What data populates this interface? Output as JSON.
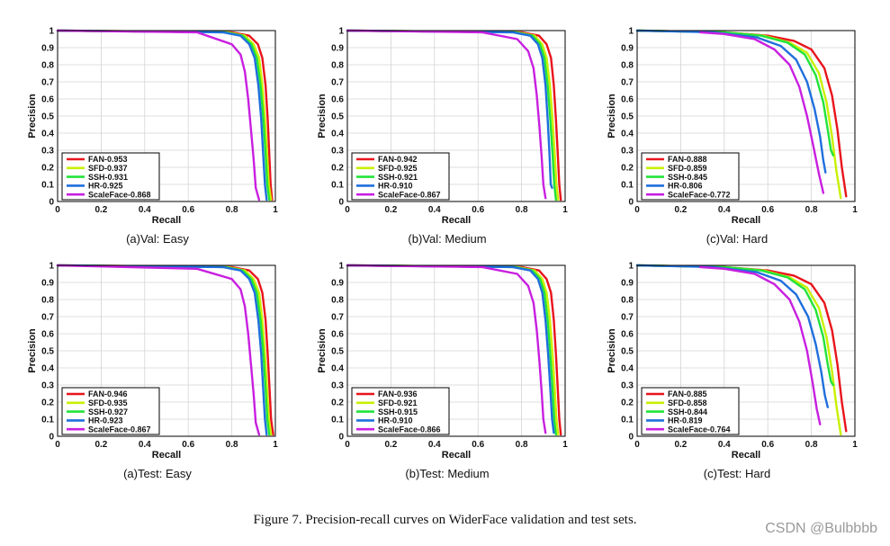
{
  "figure_caption": "Figure 7. Precision-recall curves on WiderFace validation and test sets.",
  "watermark": "CSDN @Bulbbbb",
  "colors": {
    "FAN": "#e8141c",
    "SFD": "#c8f000",
    "SSH": "#22e33a",
    "HR": "#1f6fdd",
    "ScaleFace": "#c81fe0"
  },
  "chart_data": [
    {
      "type": "line",
      "subtitle": "(a)Val: Easy",
      "xlabel": "Recall",
      "ylabel": "Precision",
      "xlim": [
        0,
        1
      ],
      "ylim": [
        0,
        1
      ],
      "grid": true,
      "legend_position": "bottom-left",
      "xticks": [
        "0",
        "0.2",
        "0.4",
        "0.6",
        "0.8",
        "1"
      ],
      "yticks": [
        "0",
        "0.1",
        "0.2",
        "0.3",
        "0.4",
        "0.5",
        "0.6",
        "0.7",
        "0.8",
        "0.9",
        "1"
      ],
      "series": [
        {
          "name": "FAN-0.953",
          "key": "FAN",
          "x": [
            0,
            0.8,
            0.88,
            0.92,
            0.94,
            0.955,
            0.965,
            0.972,
            0.978,
            0.985
          ],
          "y": [
            1,
            0.99,
            0.97,
            0.92,
            0.84,
            0.68,
            0.48,
            0.28,
            0.1,
            0.01
          ]
        },
        {
          "name": "SFD-0.937",
          "key": "SFD",
          "x": [
            0,
            0.78,
            0.86,
            0.9,
            0.925,
            0.94,
            0.952,
            0.962,
            0.97,
            0.98
          ],
          "y": [
            1,
            0.99,
            0.97,
            0.92,
            0.84,
            0.68,
            0.48,
            0.28,
            0.1,
            0.01
          ]
        },
        {
          "name": "SSH-0.931",
          "key": "SSH",
          "x": [
            0,
            0.77,
            0.85,
            0.89,
            0.915,
            0.932,
            0.945,
            0.955,
            0.963,
            0.972
          ],
          "y": [
            1,
            0.99,
            0.97,
            0.92,
            0.84,
            0.68,
            0.48,
            0.28,
            0.1,
            0.01
          ]
        },
        {
          "name": "HR-0.925",
          "key": "HR",
          "x": [
            0,
            0.76,
            0.84,
            0.88,
            0.905,
            0.922,
            0.935,
            0.944,
            0.952,
            0.96
          ],
          "y": [
            1,
            0.99,
            0.97,
            0.92,
            0.84,
            0.68,
            0.48,
            0.28,
            0.1,
            0.01
          ]
        },
        {
          "name": "ScaleFace-0.868",
          "key": "ScaleFace",
          "x": [
            0,
            0.64,
            0.8,
            0.84,
            0.86,
            0.875,
            0.888,
            0.9,
            0.91,
            0.925
          ],
          "y": [
            1,
            0.99,
            0.92,
            0.86,
            0.76,
            0.6,
            0.42,
            0.25,
            0.08,
            0.01
          ]
        }
      ]
    },
    {
      "type": "line",
      "subtitle": "(b)Val: Medium",
      "xlabel": "Recall",
      "ylabel": "Precision",
      "xlim": [
        0,
        1
      ],
      "ylim": [
        0,
        1
      ],
      "grid": true,
      "legend_position": "bottom-left",
      "xticks": [
        "0",
        "0.2",
        "0.4",
        "0.6",
        "0.8",
        "1"
      ],
      "yticks": [
        "0",
        "0.1",
        "0.2",
        "0.3",
        "0.4",
        "0.5",
        "0.6",
        "0.7",
        "0.8",
        "0.9",
        "1"
      ],
      "series": [
        {
          "name": "FAN-0.942",
          "key": "FAN",
          "x": [
            0,
            0.8,
            0.88,
            0.915,
            0.935,
            0.948,
            0.958,
            0.966,
            0.973,
            0.98
          ],
          "y": [
            1,
            0.99,
            0.97,
            0.92,
            0.84,
            0.68,
            0.48,
            0.28,
            0.1,
            0.01
          ]
        },
        {
          "name": "SFD-0.925",
          "key": "SFD",
          "x": [
            0,
            0.78,
            0.86,
            0.895,
            0.915,
            0.93,
            0.942,
            0.952,
            0.96,
            0.968
          ],
          "y": [
            1,
            0.99,
            0.97,
            0.92,
            0.84,
            0.68,
            0.48,
            0.28,
            0.1,
            0.01
          ]
        },
        {
          "name": "SSH-0.921",
          "key": "SSH",
          "x": [
            0,
            0.77,
            0.85,
            0.885,
            0.905,
            0.92,
            0.932,
            0.942,
            0.95,
            0.958
          ],
          "y": [
            1,
            0.99,
            0.97,
            0.92,
            0.84,
            0.68,
            0.48,
            0.28,
            0.1,
            0.01
          ]
        },
        {
          "name": "HR-0.910",
          "key": "HR",
          "x": [
            0,
            0.76,
            0.84,
            0.875,
            0.895,
            0.91,
            0.92,
            0.928,
            0.934,
            0.94
          ],
          "y": [
            1,
            0.99,
            0.97,
            0.92,
            0.84,
            0.68,
            0.48,
            0.28,
            0.1,
            0.08
          ]
        },
        {
          "name": "ScaleFace-0.867",
          "key": "ScaleFace",
          "x": [
            0,
            0.62,
            0.78,
            0.83,
            0.855,
            0.87,
            0.882,
            0.892,
            0.9,
            0.91
          ],
          "y": [
            1,
            0.99,
            0.95,
            0.88,
            0.78,
            0.62,
            0.44,
            0.26,
            0.1,
            0.02
          ]
        }
      ]
    },
    {
      "type": "line",
      "subtitle": "(c)Val: Hard",
      "xlabel": "Recall",
      "ylabel": "Precision",
      "xlim": [
        0,
        1
      ],
      "ylim": [
        0,
        1
      ],
      "grid": true,
      "legend_position": "bottom-left",
      "xticks": [
        "0",
        "0.2",
        "0.4",
        "0.6",
        "0.8",
        "1"
      ],
      "yticks": [
        "0",
        "0.1",
        "0.2",
        "0.3",
        "0.4",
        "0.5",
        "0.6",
        "0.7",
        "0.8",
        "0.9",
        "1"
      ],
      "series": [
        {
          "name": "FAN-0.888",
          "key": "FAN",
          "x": [
            0,
            0.4,
            0.6,
            0.72,
            0.8,
            0.86,
            0.895,
            0.92,
            0.94,
            0.96
          ],
          "y": [
            1,
            0.99,
            0.97,
            0.94,
            0.89,
            0.78,
            0.62,
            0.42,
            0.2,
            0.03
          ]
        },
        {
          "name": "SFD-0.859",
          "key": "SFD",
          "x": [
            0,
            0.4,
            0.58,
            0.7,
            0.78,
            0.835,
            0.87,
            0.895,
            0.915,
            0.935
          ],
          "y": [
            1,
            0.99,
            0.97,
            0.93,
            0.87,
            0.75,
            0.58,
            0.38,
            0.18,
            0.02
          ]
        },
        {
          "name": "SSH-0.845",
          "key": "SSH",
          "x": [
            0,
            0.4,
            0.57,
            0.69,
            0.77,
            0.82,
            0.855,
            0.875,
            0.89,
            0.9
          ],
          "y": [
            1,
            0.99,
            0.97,
            0.93,
            0.86,
            0.74,
            0.58,
            0.42,
            0.3,
            0.27
          ]
        },
        {
          "name": "HR-0.806",
          "key": "HR",
          "x": [
            0,
            0.35,
            0.55,
            0.66,
            0.73,
            0.78,
            0.815,
            0.84,
            0.855,
            0.865
          ],
          "y": [
            1,
            0.99,
            0.96,
            0.91,
            0.83,
            0.7,
            0.54,
            0.38,
            0.24,
            0.17
          ]
        },
        {
          "name": "ScaleFace-0.772",
          "key": "ScaleFace",
          "x": [
            0.29,
            0.4,
            0.54,
            0.63,
            0.7,
            0.745,
            0.78,
            0.81,
            0.835,
            0.855
          ],
          "y": [
            0.99,
            0.98,
            0.95,
            0.89,
            0.8,
            0.67,
            0.5,
            0.32,
            0.16,
            0.05
          ]
        }
      ]
    },
    {
      "type": "line",
      "subtitle": "(a)Test: Easy",
      "xlabel": "Recall",
      "ylabel": "Precision",
      "xlim": [
        0,
        1
      ],
      "ylim": [
        0,
        1
      ],
      "grid": true,
      "legend_position": "bottom-left",
      "xticks": [
        "0",
        "0.2",
        "0.4",
        "0.6",
        "0.8",
        "1"
      ],
      "yticks": [
        "0",
        "0.1",
        "0.2",
        "0.3",
        "0.4",
        "0.5",
        "0.6",
        "0.7",
        "0.8",
        "0.9",
        "1"
      ],
      "series": [
        {
          "name": "FAN-0.946",
          "key": "FAN",
          "x": [
            0,
            0.8,
            0.88,
            0.92,
            0.94,
            0.955,
            0.965,
            0.973,
            0.98,
            0.99
          ],
          "y": [
            1,
            0.99,
            0.97,
            0.92,
            0.84,
            0.68,
            0.48,
            0.28,
            0.1,
            0.01
          ]
        },
        {
          "name": "SFD-0.935",
          "key": "SFD",
          "x": [
            0,
            0.78,
            0.86,
            0.9,
            0.925,
            0.94,
            0.952,
            0.962,
            0.97,
            0.98
          ],
          "y": [
            1,
            0.99,
            0.97,
            0.92,
            0.84,
            0.68,
            0.48,
            0.28,
            0.1,
            0.01
          ]
        },
        {
          "name": "SSH-0.927",
          "key": "SSH",
          "x": [
            0,
            0.77,
            0.85,
            0.89,
            0.915,
            0.932,
            0.945,
            0.955,
            0.963,
            0.972
          ],
          "y": [
            1,
            0.99,
            0.97,
            0.92,
            0.84,
            0.68,
            0.48,
            0.28,
            0.1,
            0.01
          ]
        },
        {
          "name": "HR-0.923",
          "key": "HR",
          "x": [
            0,
            0.76,
            0.84,
            0.88,
            0.905,
            0.922,
            0.935,
            0.944,
            0.952,
            0.96
          ],
          "y": [
            1,
            0.99,
            0.97,
            0.92,
            0.84,
            0.68,
            0.48,
            0.28,
            0.1,
            0.01
          ]
        },
        {
          "name": "ScaleFace-0.867",
          "key": "ScaleFace",
          "x": [
            0,
            0.64,
            0.8,
            0.84,
            0.86,
            0.875,
            0.888,
            0.9,
            0.91,
            0.925
          ],
          "y": [
            1,
            0.98,
            0.92,
            0.86,
            0.76,
            0.6,
            0.42,
            0.25,
            0.08,
            0.01
          ]
        }
      ]
    },
    {
      "type": "line",
      "subtitle": "(b)Test: Medium",
      "xlabel": "Recall",
      "ylabel": "Precision",
      "xlim": [
        0,
        1
      ],
      "ylim": [
        0,
        1
      ],
      "grid": true,
      "legend_position": "bottom-left",
      "xticks": [
        "0",
        "0.2",
        "0.4",
        "0.6",
        "0.8",
        "1"
      ],
      "yticks": [
        "0",
        "0.1",
        "0.2",
        "0.3",
        "0.4",
        "0.5",
        "0.6",
        "0.7",
        "0.8",
        "0.9",
        "1"
      ],
      "series": [
        {
          "name": "FAN-0.936",
          "key": "FAN",
          "x": [
            0,
            0.8,
            0.88,
            0.915,
            0.935,
            0.948,
            0.958,
            0.966,
            0.973,
            0.98
          ],
          "y": [
            1,
            0.99,
            0.97,
            0.92,
            0.84,
            0.68,
            0.48,
            0.28,
            0.1,
            0.01
          ]
        },
        {
          "name": "SFD-0.921",
          "key": "SFD",
          "x": [
            0,
            0.78,
            0.86,
            0.895,
            0.915,
            0.93,
            0.942,
            0.952,
            0.96,
            0.968
          ],
          "y": [
            1,
            0.99,
            0.97,
            0.92,
            0.84,
            0.68,
            0.48,
            0.28,
            0.1,
            0.01
          ]
        },
        {
          "name": "SSH-0.915",
          "key": "SSH",
          "x": [
            0,
            0.77,
            0.85,
            0.885,
            0.905,
            0.92,
            0.932,
            0.942,
            0.95,
            0.958
          ],
          "y": [
            1,
            0.99,
            0.97,
            0.92,
            0.84,
            0.68,
            0.48,
            0.28,
            0.1,
            0.01
          ]
        },
        {
          "name": "HR-0.910",
          "key": "HR",
          "x": [
            0,
            0.76,
            0.84,
            0.875,
            0.895,
            0.91,
            0.922,
            0.932,
            0.94,
            0.948
          ],
          "y": [
            1,
            0.99,
            0.97,
            0.92,
            0.84,
            0.68,
            0.48,
            0.28,
            0.1,
            0.02
          ]
        },
        {
          "name": "ScaleFace-0.866",
          "key": "ScaleFace",
          "x": [
            0,
            0.62,
            0.78,
            0.83,
            0.855,
            0.87,
            0.882,
            0.892,
            0.9,
            0.91
          ],
          "y": [
            1,
            0.99,
            0.95,
            0.88,
            0.78,
            0.62,
            0.44,
            0.26,
            0.1,
            0.02
          ]
        }
      ]
    },
    {
      "type": "line",
      "subtitle": "(c)Test: Hard",
      "xlabel": "Recall",
      "ylabel": "Precision",
      "xlim": [
        0,
        1
      ],
      "ylim": [
        0,
        1
      ],
      "grid": true,
      "legend_position": "bottom-left",
      "xticks": [
        "0",
        "0.2",
        "0.4",
        "0.6",
        "0.8",
        "1"
      ],
      "yticks": [
        "0",
        "0.1",
        "0.2",
        "0.3",
        "0.4",
        "0.5",
        "0.6",
        "0.7",
        "0.8",
        "0.9",
        "1"
      ],
      "series": [
        {
          "name": "FAN-0.885",
          "key": "FAN",
          "x": [
            0,
            0.4,
            0.6,
            0.72,
            0.8,
            0.86,
            0.895,
            0.92,
            0.94,
            0.96
          ],
          "y": [
            1,
            0.99,
            0.97,
            0.94,
            0.89,
            0.78,
            0.62,
            0.42,
            0.2,
            0.03
          ]
        },
        {
          "name": "SFD-0.858",
          "key": "SFD",
          "x": [
            0,
            0.4,
            0.58,
            0.7,
            0.78,
            0.835,
            0.87,
            0.895,
            0.915,
            0.935
          ],
          "y": [
            1,
            0.99,
            0.97,
            0.93,
            0.87,
            0.75,
            0.58,
            0.38,
            0.18,
            0.01
          ]
        },
        {
          "name": "SSH-0.844",
          "key": "SSH",
          "x": [
            0,
            0.4,
            0.57,
            0.69,
            0.77,
            0.82,
            0.855,
            0.875,
            0.89,
            0.9
          ],
          "y": [
            1,
            0.99,
            0.97,
            0.93,
            0.86,
            0.74,
            0.58,
            0.42,
            0.32,
            0.3
          ]
        },
        {
          "name": "HR-0.819",
          "key": "HR",
          "x": [
            0,
            0.35,
            0.55,
            0.66,
            0.73,
            0.785,
            0.82,
            0.845,
            0.862,
            0.875
          ],
          "y": [
            1,
            0.99,
            0.96,
            0.91,
            0.83,
            0.7,
            0.54,
            0.38,
            0.24,
            0.17
          ]
        },
        {
          "name": "ScaleFace-0.764",
          "key": "ScaleFace",
          "x": [
            0.29,
            0.4,
            0.54,
            0.63,
            0.7,
            0.745,
            0.78,
            0.805,
            0.825,
            0.84
          ],
          "y": [
            0.99,
            0.98,
            0.95,
            0.89,
            0.8,
            0.67,
            0.5,
            0.32,
            0.16,
            0.07
          ]
        }
      ]
    }
  ]
}
